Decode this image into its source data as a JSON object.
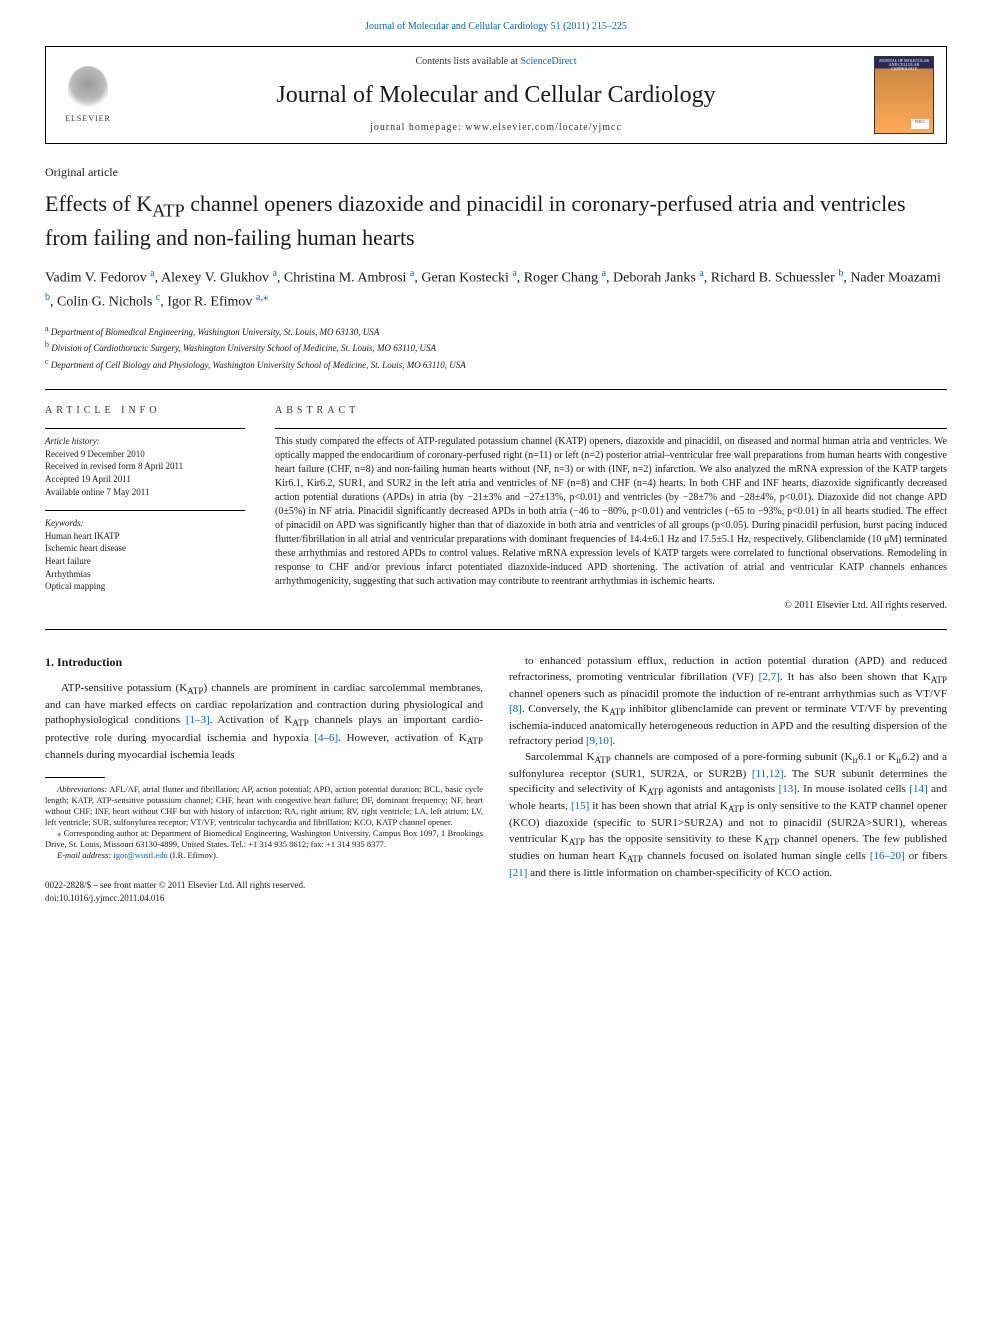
{
  "top_link": "Journal of Molecular and Cellular Cardiology 51 (2011) 215–225",
  "header": {
    "contents_prefix": "Contents lists available at ",
    "contents_link": "ScienceDirect",
    "journal": "Journal of Molecular and Cellular Cardiology",
    "homepage_prefix": "journal homepage: ",
    "homepage": "www.elsevier.com/locate/yjmcc",
    "elsevier": "ELSEVIER",
    "cover_label": "JOURNAL OF MOLECULAR AND CELLULAR CARDIOLOGY",
    "cover_badge": "JMCC"
  },
  "article_type": "Original article",
  "title_line1": "Effects of K",
  "title_sub1": "ATP",
  "title_line2": " channel openers diazoxide and pinacidil in coronary-perfused atria and ventricles from failing and non-failing human hearts",
  "authors": {
    "a1": "Vadim V. Fedorov ",
    "a1s": "a",
    "a2": ", Alexey V. Glukhov ",
    "a2s": "a",
    "a3": ", Christina M. Ambrosi ",
    "a3s": "a",
    "a4": ", Geran Kostecki ",
    "a4s": "a",
    "a5": ", Roger Chang ",
    "a5s": "a",
    "a6": ", Deborah Janks ",
    "a6s": "a",
    "a7": ", Richard B. Schuessler ",
    "a7s": "b",
    "a8": ", Nader Moazami ",
    "a8s": "b",
    "a9": ", Colin G. Nichols ",
    "a9s": "c",
    "a10": ", Igor R. Efimov ",
    "a10s": "a,",
    "a10star": "⁎"
  },
  "affiliations": {
    "a": "Department of Biomedical Engineering, Washington University, St. Louis, MO 63130, USA",
    "b": "Division of Cardiothoracic Surgery, Washington University School of Medicine, St. Louis, MO 63110, USA",
    "c": "Department of Cell Biology and Physiology, Washington University School of Medicine, St. Louis, MO 63110, USA"
  },
  "info_head": "article info",
  "abs_head": "abstract",
  "history": {
    "label": "Article history:",
    "l1": "Received 9 December 2010",
    "l2": "Received in revised form 8 April 2011",
    "l3": "Accepted 19 April 2011",
    "l4": "Available online 7 May 2011"
  },
  "keywords": {
    "label": "Keywords:",
    "k1": "Human heart IKATP",
    "k2": "Ischemic heart disease",
    "k3": "Heart failure",
    "k4": "Arrhythmias",
    "k5": "Optical mapping"
  },
  "abstract": "This study compared the effects of ATP-regulated potassium channel (KATP) openers, diazoxide and pinacidil, on diseased and normal human atria and ventricles. We optically mapped the endocardium of coronary-perfused right (n=11) or left (n=2) posterior atrial–ventricular free wall preparations from human hearts with congestive heart failure (CHF, n=8) and non-failing human hearts without (NF, n=3) or with (INF, n=2) infarction. We also analyzed the mRNA expression of the KATP targets Kir6.1, Kir6.2, SUR1, and SUR2 in the left atria and ventricles of NF (n=8) and CHF (n=4) hearts. In both CHF and INF hearts, diazoxide significantly decreased action potential durations (APDs) in atria (by −21±3% and −27±13%, p<0.01) and ventricles (by −28±7% and −28±4%, p<0.01). Diazoxide did not change APD (0±5%) in NF atria. Pinacidil significantly decreased APDs in both atria (−46 to −80%, p<0.01) and ventricles (−65 to −93%, p<0.01) in all hearts studied. The effect of pinacidil on APD was significantly higher than that of diazoxide in both atria and ventricles of all groups (p<0.05). During pinacidil perfusion, burst pacing induced flutter/fibrillation in all atrial and ventricular preparations with dominant frequencies of 14.4±6.1 Hz and 17.5±5.1 Hz, respectively. Glibenclamide (10 μM) terminated these arrhythmias and restored APDs to control values. Relative mRNA expression levels of KATP targets were correlated to functional observations. Remodeling in response to CHF and/or previous infarct potentiated diazoxide-induced APD shortening. The activation of atrial and ventricular KATP channels enhances arrhythmogenicity, suggesting that such activation may contribute to reentrant arrhythmias in ischemic hearts.",
  "copyright": "© 2011 Elsevier Ltd. All rights reserved.",
  "intro_head": "1. Introduction",
  "intro_p1a": "ATP-sensitive potassium (K",
  "intro_p1b": ") channels are prominent in cardiac sarcolemmal membranes, and can have marked effects on cardiac repolarization and contraction during physiological and pathophysiological conditions ",
  "intro_p1c": ". Activation of K",
  "intro_p1d": " channels plays an important cardio-protective role during myocardial ischemia and hypoxia ",
  "intro_p1e": ". However, activation of K",
  "intro_p1f": " channels during myocardial ischemia leads ",
  "intro_r1": "[1–3]",
  "intro_r2": "[4–6]",
  "col2_p1a": "to enhanced potassium efflux, reduction in action potential duration (APD) and reduced refractoriness, promoting ventricular fibrillation (VF) ",
  "col2_r1": "[2,7]",
  "col2_p1b": ". It has also been shown that K",
  "col2_p1c": " channel openers such as pinacidil promote the induction of re-entrant arrhythmias such as VT/VF ",
  "col2_r2": "[8]",
  "col2_p1d": ". Conversely, the K",
  "col2_p1e": " inhibitor glibenclamide can prevent or terminate VT/VF by preventing ischemia-induced anatomically heterogeneous reduction in APD and the resulting dispersion of the refractory period ",
  "col2_r3": "[9,10]",
  "col2_p1f": ".",
  "col2_p2a": "Sarcolemmal K",
  "col2_p2b": " channels are composed of a pore-forming subunit (K",
  "col2_p2c": "6.1 or K",
  "col2_p2d": "6.2) and a sulfonylurea receptor (SUR1, SUR2A, or SUR2B) ",
  "col2_r4": "[11,12]",
  "col2_p2e": ". The SUR subunit determines the specificity and selectivity of K",
  "col2_p2f": " agonists and antagonists ",
  "col2_r5": "[13]",
  "col2_p2g": ". In mouse isolated cells ",
  "col2_r6": "[14]",
  "col2_p2h": " and whole hearts, ",
  "col2_r7": "[15]",
  "col2_p2i": " it has been shown that atrial K",
  "col2_p2j": " is only sensitive to the KATP channel opener (KCO) diazoxide (specific to SUR1>SUR2A) and not to pinacidil (SUR2A>SUR1), whereas ventricular K",
  "col2_p2k": " has the opposite sensitivity to these K",
  "col2_p2l": " channel openers. The few published studies on human heart K",
  "col2_p2m": " channels focused on isolated human single cells ",
  "col2_r8": "[16–20]",
  "col2_p2n": " or fibers ",
  "col2_r9": "[21]",
  "col2_p2o": " and there is little information on chamber-specificity of KCO action.",
  "abbrev_label": "Abbreviations:",
  "abbrev": " AFL/AF, atrial flutter and fibrillation; AP, action potential; APD, action potential duration; BCL, basic cycle length; KATP, ATP-sensitive potassium channel; CHF, heart with congestive heart failure; DF, dominant frequency; NF, heart without CHF; INF, heart without CHF but with history of infarction; RA, right atrium; RV, right ventricle; LA, left atrium; LV, left ventricle; SUR, sulfonylurea receptor; VT/VF, ventricular tachycardia and fibrillation; KCO, KATP channel opener.",
  "corr_star": "⁎",
  "corr": " Corresponding author at: Department of Biomedical Engineering, Washington University, Campus Box 1097, 1 Brookings Drive, St. Louis, Missouri 63130-4899, United States. Tel.: +1 314 935 8612; fax: +1 314 935 8377.",
  "email_label": "E-mail address: ",
  "email": "igor@wustl.edu",
  "email_suffix": " (I.R. Efimov).",
  "issn_line": "0022-2828/$ – see front matter © 2011 Elsevier Ltd. All rights reserved.",
  "doi_line": "doi:10.1016/j.yjmcc.2011.04.016",
  "colors": {
    "link": "#0066cc",
    "text": "#1a1a1a",
    "bg": "#ffffff"
  }
}
